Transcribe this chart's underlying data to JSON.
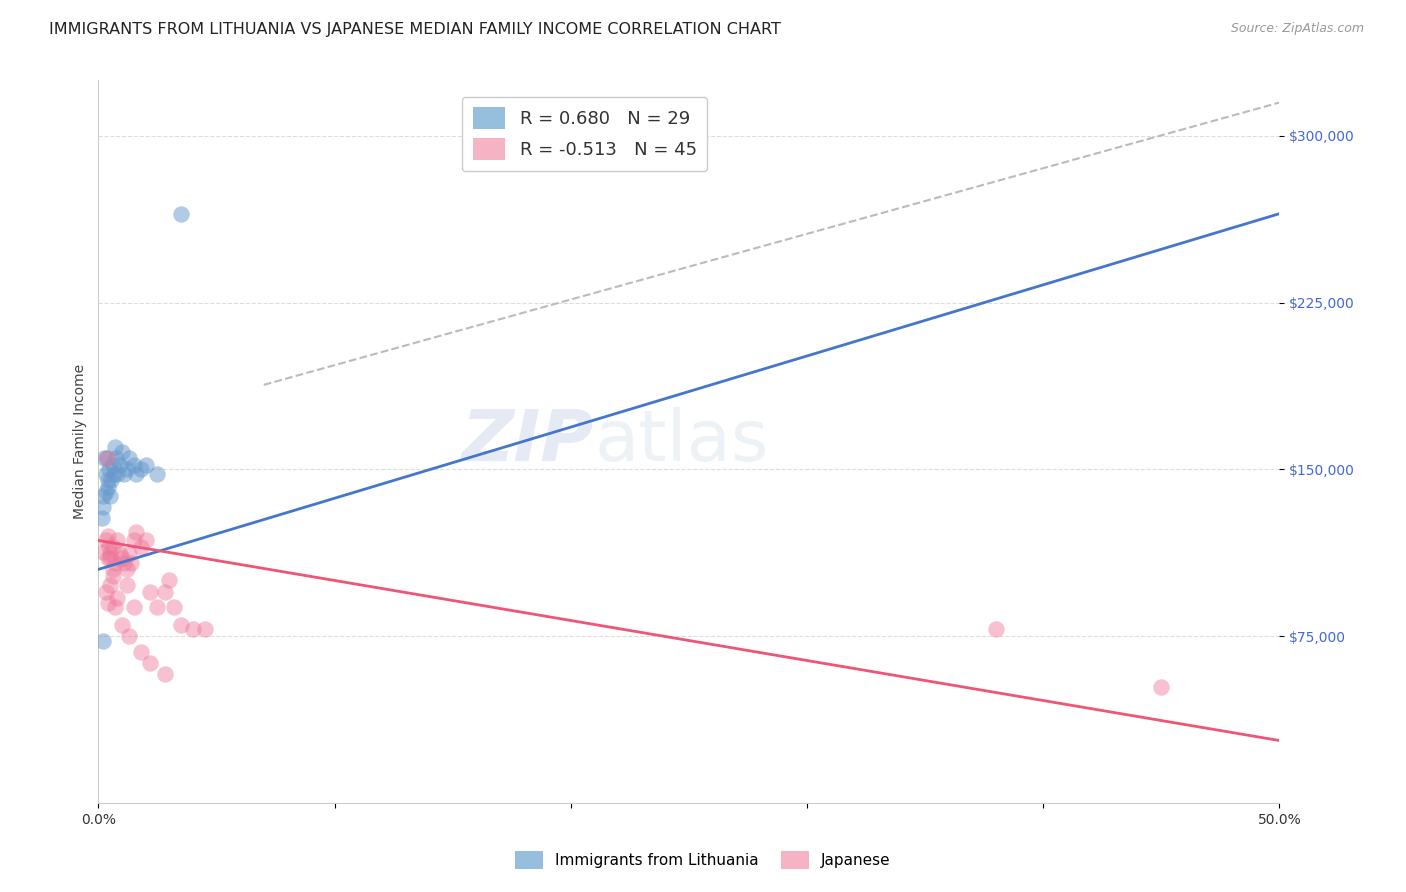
{
  "title": "IMMIGRANTS FROM LITHUANIA VS JAPANESE MEDIAN FAMILY INCOME CORRELATION CHART",
  "source": "Source: ZipAtlas.com",
  "ylabel": "Median Family Income",
  "xlim": [
    0.0,
    0.5
  ],
  "ylim": [
    0,
    325000
  ],
  "yticks": [
    75000,
    150000,
    225000,
    300000
  ],
  "ytick_labels": [
    "$75,000",
    "$150,000",
    "$225,000",
    "$300,000"
  ],
  "watermark_part1": "ZIP",
  "watermark_part2": "atlas",
  "legend_r_blue": "R = 0.680",
  "legend_n_blue": "N = 29",
  "legend_r_pink": "R = -0.513",
  "legend_n_pink": "N = 45",
  "blue_color": "#7bafd4",
  "pink_color": "#f4a0b5",
  "blue_scatter_color": "#6699cc",
  "pink_scatter_color": "#ee7799",
  "blue_line_color": "#4477cc",
  "pink_line_color": "#ee5577",
  "dashed_line_color": "#bbbbbb",
  "blue_scatter": [
    [
      0.0018,
      133000
    ],
    [
      0.0025,
      155000
    ],
    [
      0.003,
      148000
    ],
    [
      0.0035,
      155000
    ],
    [
      0.004,
      142000
    ],
    [
      0.0045,
      150000
    ],
    [
      0.005,
      138000
    ],
    [
      0.0055,
      145000
    ],
    [
      0.006,
      152000
    ],
    [
      0.0065,
      148000
    ],
    [
      0.007,
      160000
    ],
    [
      0.0075,
      155000
    ],
    [
      0.008,
      148000
    ],
    [
      0.009,
      152000
    ],
    [
      0.01,
      158000
    ],
    [
      0.011,
      148000
    ],
    [
      0.012,
      150000
    ],
    [
      0.013,
      155000
    ],
    [
      0.015,
      152000
    ],
    [
      0.016,
      148000
    ],
    [
      0.018,
      150000
    ],
    [
      0.02,
      152000
    ],
    [
      0.0015,
      128000
    ],
    [
      0.002,
      138000
    ],
    [
      0.003,
      140000
    ],
    [
      0.004,
      145000
    ],
    [
      0.025,
      148000
    ],
    [
      0.035,
      265000
    ],
    [
      0.002,
      73000
    ]
  ],
  "pink_scatter": [
    [
      0.002,
      113000
    ],
    [
      0.003,
      118000
    ],
    [
      0.004,
      110000
    ],
    [
      0.005,
      112000
    ],
    [
      0.006,
      115000
    ],
    [
      0.007,
      108000
    ],
    [
      0.008,
      118000
    ],
    [
      0.009,
      112000
    ],
    [
      0.01,
      110000
    ],
    [
      0.011,
      108000
    ],
    [
      0.012,
      105000
    ],
    [
      0.013,
      112000
    ],
    [
      0.014,
      108000
    ],
    [
      0.0035,
      155000
    ],
    [
      0.004,
      120000
    ],
    [
      0.0045,
      115000
    ],
    [
      0.005,
      110000
    ],
    [
      0.006,
      105000
    ],
    [
      0.015,
      118000
    ],
    [
      0.016,
      122000
    ],
    [
      0.018,
      115000
    ],
    [
      0.02,
      118000
    ],
    [
      0.022,
      95000
    ],
    [
      0.025,
      88000
    ],
    [
      0.028,
      95000
    ],
    [
      0.03,
      100000
    ],
    [
      0.032,
      88000
    ],
    [
      0.035,
      80000
    ],
    [
      0.04,
      78000
    ],
    [
      0.045,
      78000
    ],
    [
      0.003,
      95000
    ],
    [
      0.004,
      90000
    ],
    [
      0.005,
      98000
    ],
    [
      0.006,
      102000
    ],
    [
      0.007,
      88000
    ],
    [
      0.008,
      92000
    ],
    [
      0.012,
      98000
    ],
    [
      0.015,
      88000
    ],
    [
      0.01,
      80000
    ],
    [
      0.013,
      75000
    ],
    [
      0.018,
      68000
    ],
    [
      0.022,
      63000
    ],
    [
      0.028,
      58000
    ],
    [
      0.38,
      78000
    ],
    [
      0.45,
      52000
    ]
  ],
  "blue_line_x": [
    0.0,
    0.5
  ],
  "blue_line_y": [
    105000,
    265000
  ],
  "pink_line_x": [
    0.0,
    0.5
  ],
  "pink_line_y": [
    118000,
    28000
  ],
  "dashed_line_x": [
    0.07,
    0.5
  ],
  "dashed_line_y": [
    188000,
    315000
  ],
  "title_fontsize": 11.5,
  "source_fontsize": 9,
  "axis_label_fontsize": 10,
  "tick_fontsize": 10,
  "legend_fontsize": 13,
  "watermark_fontsize": 52,
  "background_color": "#ffffff",
  "grid_color": "#dddddd",
  "ytick_color": "#4466dd",
  "xtick_color": "#333333"
}
